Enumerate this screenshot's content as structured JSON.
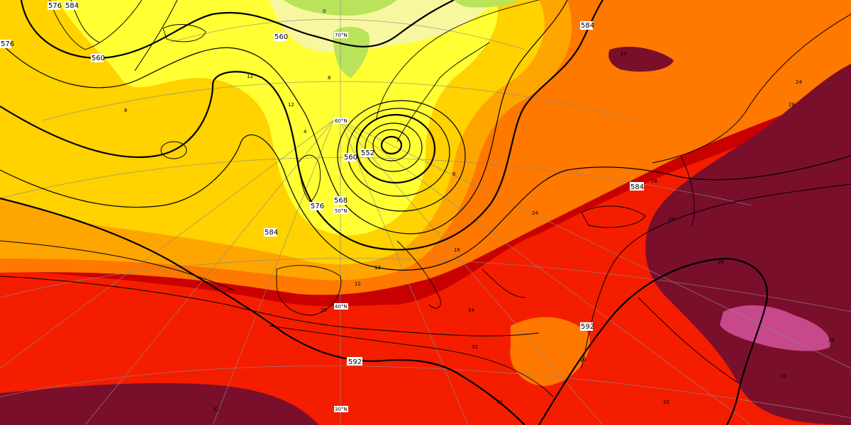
{
  "palette": {
    "green": "#b9e35a",
    "paleyellow": "#f7f7a0",
    "yellow": "#ffff33",
    "gold": "#ffd200",
    "orange": "#ffa500",
    "darkorange": "#ff7800",
    "red": "#f51d00",
    "crimson": "#c80000",
    "maroon": "#7a0f2c",
    "pink": "#c8488c",
    "contour": "#000000",
    "grid": "#8a8a8a"
  },
  "contour_labels": [
    "576",
    "584",
    "560",
    "560",
    "552",
    "560",
    "568",
    "576",
    "584",
    "584",
    "592",
    "592",
    "576",
    "584"
  ],
  "temp_labels": [
    "0",
    "12",
    "12",
    "8",
    "4",
    "16",
    "12",
    "20",
    "32",
    "24",
    "28",
    "28",
    "24",
    "28",
    "24",
    "28",
    "20",
    "20",
    "28",
    "20",
    "24",
    "32",
    "32",
    "8",
    "8",
    "12"
  ],
  "lat_labels": [
    "70°N",
    "60°N",
    "50°N",
    "40°N",
    "30°N"
  ]
}
